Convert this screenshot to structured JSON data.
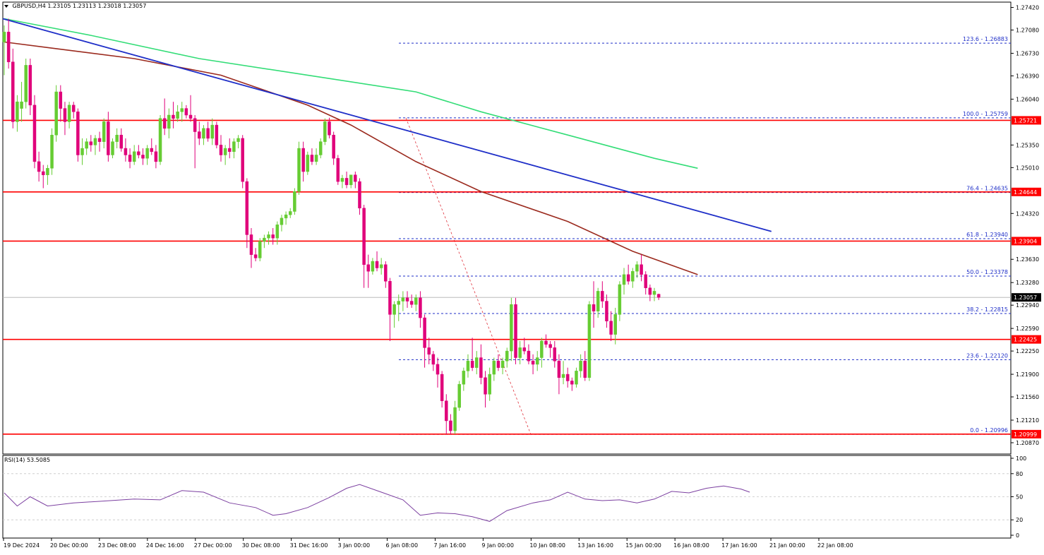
{
  "header": {
    "symbol": "GBPUSD,H4",
    "ohlc": "1.23105 1.23113 1.23018 1.23057"
  },
  "rsi": {
    "label": "RSI(14) 53.5085",
    "levels": [
      "100",
      "80",
      "50",
      "20",
      "0"
    ],
    "current": 53.5
  },
  "colors": {
    "bull": "#66cc33",
    "bear": "#e0007a",
    "sma_fast": "#9b2a1e",
    "sma_slow": "#33dd77",
    "trendline": "#1f2fc8",
    "support": "#ff0000",
    "fib": "#1f2fc8",
    "rsi": "#7b3fa0"
  },
  "chart_data": {
    "type": "candlestick",
    "symbol": "GBPUSD",
    "timeframe": "H4",
    "ylim": [
      1.207,
      1.275
    ],
    "y_ticks": [
      "1.27420",
      "1.27080",
      "1.26730",
      "1.26390",
      "1.26040",
      "1.25350",
      "1.25010",
      "1.24320",
      "1.23630",
      "1.23280",
      "1.22940",
      "1.22590",
      "1.22250",
      "1.21900",
      "1.21560",
      "1.21210",
      "1.20870"
    ],
    "x_ticks": [
      "19 Dec 2024",
      "20 Dec 00:00",
      "23 Dec 08:00",
      "24 Dec 16:00",
      "27 Dec 00:00",
      "30 Dec 08:00",
      "31 Dec 16:00",
      "3 Jan 00:00",
      "6 Jan 08:00",
      "7 Jan 16:00",
      "9 Jan 00:00",
      "10 Jan 08:00",
      "13 Jan 16:00",
      "15 Jan 00:00",
      "16 Jan 08:00",
      "17 Jan 16:00",
      "21 Jan 00:00",
      "22 Jan 08:00"
    ],
    "current_price": "1.23057",
    "support_resistance": [
      {
        "price": 1.25721,
        "label": "1.25721"
      },
      {
        "price": 1.24644,
        "label": "1.24644"
      },
      {
        "price": 1.23904,
        "label": "1.23904"
      },
      {
        "price": 1.22425,
        "label": "1.22425"
      },
      {
        "price": 1.20999,
        "label": "1.20999"
      }
    ],
    "fibonacci": [
      {
        "price": 1.26883,
        "label": "123.6 - 1.26883"
      },
      {
        "price": 1.25759,
        "label": "100.0 - 1.25759"
      },
      {
        "price": 1.24635,
        "label": "76.4 - 1.24635"
      },
      {
        "price": 1.2394,
        "label": "61.8 - 1.23940"
      },
      {
        "price": 1.23378,
        "label": "50.0 - 1.23378"
      },
      {
        "price": 1.22815,
        "label": "38.2 - 1.22815"
      },
      {
        "price": 1.2212,
        "label": "23.6 - 1.22120"
      },
      {
        "price": 1.20996,
        "label": "0.0 - 1.20996"
      }
    ],
    "candles": [
      {
        "o": 1.269,
        "h": 1.2715,
        "l": 1.264,
        "c": 1.2705
      },
      {
        "o": 1.2705,
        "h": 1.2725,
        "l": 1.265,
        "c": 1.266
      },
      {
        "o": 1.266,
        "h": 1.268,
        "l": 1.256,
        "c": 1.257
      },
      {
        "o": 1.257,
        "h": 1.261,
        "l": 1.2555,
        "c": 1.26
      },
      {
        "o": 1.259,
        "h": 1.263,
        "l": 1.257,
        "c": 1.26
      },
      {
        "o": 1.26,
        "h": 1.2665,
        "l": 1.259,
        "c": 1.2655
      },
      {
        "o": 1.2655,
        "h": 1.2665,
        "l": 1.258,
        "c": 1.2595
      },
      {
        "o": 1.2595,
        "h": 1.261,
        "l": 1.25,
        "c": 1.251
      },
      {
        "o": 1.251,
        "h": 1.2525,
        "l": 1.248,
        "c": 1.2495
      },
      {
        "o": 1.2495,
        "h": 1.2505,
        "l": 1.247,
        "c": 1.249
      },
      {
        "o": 1.249,
        "h": 1.2505,
        "l": 1.2475,
        "c": 1.25
      },
      {
        "o": 1.25,
        "h": 1.256,
        "l": 1.249,
        "c": 1.255
      },
      {
        "o": 1.255,
        "h": 1.2625,
        "l": 1.254,
        "c": 1.2615
      },
      {
        "o": 1.2615,
        "h": 1.2625,
        "l": 1.257,
        "c": 1.259
      },
      {
        "o": 1.259,
        "h": 1.26,
        "l": 1.255,
        "c": 1.257
      },
      {
        "o": 1.257,
        "h": 1.26,
        "l": 1.256,
        "c": 1.2595
      },
      {
        "o": 1.2595,
        "h": 1.26,
        "l": 1.2575,
        "c": 1.2585
      },
      {
        "o": 1.2585,
        "h": 1.259,
        "l": 1.251,
        "c": 1.252
      },
      {
        "o": 1.252,
        "h": 1.2545,
        "l": 1.2505,
        "c": 1.253
      },
      {
        "o": 1.253,
        "h": 1.2545,
        "l": 1.252,
        "c": 1.254
      },
      {
        "o": 1.254,
        "h": 1.255,
        "l": 1.2525,
        "c": 1.2535
      },
      {
        "o": 1.2535,
        "h": 1.255,
        "l": 1.252,
        "c": 1.2545
      },
      {
        "o": 1.2545,
        "h": 1.2555,
        "l": 1.2525,
        "c": 1.254
      },
      {
        "o": 1.254,
        "h": 1.2575,
        "l": 1.253,
        "c": 1.257
      },
      {
        "o": 1.257,
        "h": 1.2585,
        "l": 1.251,
        "c": 1.252
      },
      {
        "o": 1.252,
        "h": 1.2545,
        "l": 1.2515,
        "c": 1.254
      },
      {
        "o": 1.254,
        "h": 1.256,
        "l": 1.253,
        "c": 1.255
      },
      {
        "o": 1.255,
        "h": 1.256,
        "l": 1.2525,
        "c": 1.253
      },
      {
        "o": 1.253,
        "h": 1.2545,
        "l": 1.251,
        "c": 1.252
      },
      {
        "o": 1.252,
        "h": 1.253,
        "l": 1.25,
        "c": 1.251
      },
      {
        "o": 1.251,
        "h": 1.2535,
        "l": 1.2505,
        "c": 1.2525
      },
      {
        "o": 1.2525,
        "h": 1.2535,
        "l": 1.2515,
        "c": 1.252
      },
      {
        "o": 1.252,
        "h": 1.253,
        "l": 1.2505,
        "c": 1.2515
      },
      {
        "o": 1.2515,
        "h": 1.2535,
        "l": 1.2505,
        "c": 1.253
      },
      {
        "o": 1.253,
        "h": 1.2545,
        "l": 1.252,
        "c": 1.2525
      },
      {
        "o": 1.2525,
        "h": 1.2535,
        "l": 1.25,
        "c": 1.251
      },
      {
        "o": 1.251,
        "h": 1.258,
        "l": 1.2505,
        "c": 1.2575
      },
      {
        "o": 1.2575,
        "h": 1.2605,
        "l": 1.255,
        "c": 1.256
      },
      {
        "o": 1.256,
        "h": 1.259,
        "l": 1.2545,
        "c": 1.258
      },
      {
        "o": 1.258,
        "h": 1.26,
        "l": 1.256,
        "c": 1.2575
      },
      {
        "o": 1.2575,
        "h": 1.2595,
        "l": 1.257,
        "c": 1.2585
      },
      {
        "o": 1.2585,
        "h": 1.26,
        "l": 1.257,
        "c": 1.259
      },
      {
        "o": 1.259,
        "h": 1.2595,
        "l": 1.2575,
        "c": 1.258
      },
      {
        "o": 1.258,
        "h": 1.261,
        "l": 1.257,
        "c": 1.2575
      },
      {
        "o": 1.2575,
        "h": 1.258,
        "l": 1.25,
        "c": 1.2555
      },
      {
        "o": 1.2555,
        "h": 1.257,
        "l": 1.2535,
        "c": 1.2545
      },
      {
        "o": 1.2545,
        "h": 1.2565,
        "l": 1.2535,
        "c": 1.256
      },
      {
        "o": 1.256,
        "h": 1.257,
        "l": 1.254,
        "c": 1.2545
      },
      {
        "o": 1.2545,
        "h": 1.2575,
        "l": 1.2535,
        "c": 1.2565
      },
      {
        "o": 1.2565,
        "h": 1.257,
        "l": 1.253,
        "c": 1.2535
      },
      {
        "o": 1.2535,
        "h": 1.255,
        "l": 1.251,
        "c": 1.252
      },
      {
        "o": 1.252,
        "h": 1.2535,
        "l": 1.2505,
        "c": 1.253
      },
      {
        "o": 1.253,
        "h": 1.2545,
        "l": 1.2515,
        "c": 1.2525
      },
      {
        "o": 1.2525,
        "h": 1.2545,
        "l": 1.2515,
        "c": 1.254
      },
      {
        "o": 1.254,
        "h": 1.255,
        "l": 1.253,
        "c": 1.2545
      },
      {
        "o": 1.2545,
        "h": 1.255,
        "l": 1.247,
        "c": 1.248
      },
      {
        "o": 1.248,
        "h": 1.2485,
        "l": 1.238,
        "c": 1.24
      },
      {
        "o": 1.24,
        "h": 1.241,
        "l": 1.235,
        "c": 1.237
      },
      {
        "o": 1.237,
        "h": 1.238,
        "l": 1.236,
        "c": 1.2365
      },
      {
        "o": 1.2365,
        "h": 1.2395,
        "l": 1.236,
        "c": 1.239
      },
      {
        "o": 1.239,
        "h": 1.24,
        "l": 1.238,
        "c": 1.2395
      },
      {
        "o": 1.2395,
        "h": 1.2405,
        "l": 1.2385,
        "c": 1.24
      },
      {
        "o": 1.24,
        "h": 1.241,
        "l": 1.2385,
        "c": 1.2395
      },
      {
        "o": 1.2395,
        "h": 1.242,
        "l": 1.2385,
        "c": 1.2415
      },
      {
        "o": 1.2415,
        "h": 1.243,
        "l": 1.2405,
        "c": 1.2425
      },
      {
        "o": 1.2425,
        "h": 1.2435,
        "l": 1.2415,
        "c": 1.243
      },
      {
        "o": 1.243,
        "h": 1.244,
        "l": 1.2425,
        "c": 1.2435
      },
      {
        "o": 1.2435,
        "h": 1.247,
        "l": 1.243,
        "c": 1.2465
      },
      {
        "o": 1.2465,
        "h": 1.254,
        "l": 1.246,
        "c": 1.253
      },
      {
        "o": 1.253,
        "h": 1.254,
        "l": 1.248,
        "c": 1.2495
      },
      {
        "o": 1.2495,
        "h": 1.2525,
        "l": 1.249,
        "c": 1.252
      },
      {
        "o": 1.252,
        "h": 1.253,
        "l": 1.2505,
        "c": 1.251
      },
      {
        "o": 1.251,
        "h": 1.253,
        "l": 1.2505,
        "c": 1.252
      },
      {
        "o": 1.252,
        "h": 1.2545,
        "l": 1.2515,
        "c": 1.254
      },
      {
        "o": 1.254,
        "h": 1.2575,
        "l": 1.2535,
        "c": 1.257
      },
      {
        "o": 1.257,
        "h": 1.2576,
        "l": 1.2545,
        "c": 1.255
      },
      {
        "o": 1.255,
        "h": 1.2555,
        "l": 1.2505,
        "c": 1.2515
      },
      {
        "o": 1.2515,
        "h": 1.252,
        "l": 1.2475,
        "c": 1.248
      },
      {
        "o": 1.248,
        "h": 1.249,
        "l": 1.247,
        "c": 1.2485
      },
      {
        "o": 1.2485,
        "h": 1.2495,
        "l": 1.247,
        "c": 1.2475
      },
      {
        "o": 1.2475,
        "h": 1.249,
        "l": 1.247,
        "c": 1.249
      },
      {
        "o": 1.249,
        "h": 1.2495,
        "l": 1.247,
        "c": 1.248
      },
      {
        "o": 1.248,
        "h": 1.2485,
        "l": 1.243,
        "c": 1.244
      },
      {
        "o": 1.244,
        "h": 1.2445,
        "l": 1.232,
        "c": 1.2355
      },
      {
        "o": 1.2355,
        "h": 1.237,
        "l": 1.232,
        "c": 1.2345
      },
      {
        "o": 1.2345,
        "h": 1.2365,
        "l": 1.234,
        "c": 1.236
      },
      {
        "o": 1.236,
        "h": 1.2375,
        "l": 1.2345,
        "c": 1.235
      },
      {
        "o": 1.235,
        "h": 1.2365,
        "l": 1.234,
        "c": 1.2355
      },
      {
        "o": 1.2355,
        "h": 1.236,
        "l": 1.232,
        "c": 1.233
      },
      {
        "o": 1.233,
        "h": 1.2335,
        "l": 1.224,
        "c": 1.228
      },
      {
        "o": 1.228,
        "h": 1.23,
        "l": 1.226,
        "c": 1.2295
      },
      {
        "o": 1.2295,
        "h": 1.231,
        "l": 1.227,
        "c": 1.23
      },
      {
        "o": 1.23,
        "h": 1.2315,
        "l": 1.2285,
        "c": 1.2305
      },
      {
        "o": 1.2305,
        "h": 1.2315,
        "l": 1.229,
        "c": 1.23
      },
      {
        "o": 1.23,
        "h": 1.231,
        "l": 1.229,
        "c": 1.2295
      },
      {
        "o": 1.2295,
        "h": 1.231,
        "l": 1.2285,
        "c": 1.2305
      },
      {
        "o": 1.2305,
        "h": 1.2315,
        "l": 1.226,
        "c": 1.2275
      },
      {
        "o": 1.2275,
        "h": 1.228,
        "l": 1.22,
        "c": 1.223
      },
      {
        "o": 1.223,
        "h": 1.2245,
        "l": 1.2205,
        "c": 1.222
      },
      {
        "o": 1.222,
        "h": 1.2225,
        "l": 1.2195,
        "c": 1.2205
      },
      {
        "o": 1.2205,
        "h": 1.2215,
        "l": 1.217,
        "c": 1.219
      },
      {
        "o": 1.219,
        "h": 1.2195,
        "l": 1.214,
        "c": 1.215
      },
      {
        "o": 1.215,
        "h": 1.216,
        "l": 1.21,
        "c": 1.212
      },
      {
        "o": 1.212,
        "h": 1.213,
        "l": 1.21,
        "c": 1.2105
      },
      {
        "o": 1.2105,
        "h": 1.215,
        "l": 1.21,
        "c": 1.214
      },
      {
        "o": 1.214,
        "h": 1.218,
        "l": 1.2135,
        "c": 1.2175
      },
      {
        "o": 1.2175,
        "h": 1.22,
        "l": 1.2165,
        "c": 1.2195
      },
      {
        "o": 1.2195,
        "h": 1.222,
        "l": 1.2185,
        "c": 1.221
      },
      {
        "o": 1.221,
        "h": 1.2245,
        "l": 1.2195,
        "c": 1.22
      },
      {
        "o": 1.22,
        "h": 1.2225,
        "l": 1.219,
        "c": 1.2215
      },
      {
        "o": 1.2215,
        "h": 1.2235,
        "l": 1.2175,
        "c": 1.2185
      },
      {
        "o": 1.2185,
        "h": 1.2195,
        "l": 1.214,
        "c": 1.216
      },
      {
        "o": 1.216,
        "h": 1.22,
        "l": 1.215,
        "c": 1.219
      },
      {
        "o": 1.219,
        "h": 1.2215,
        "l": 1.218,
        "c": 1.221
      },
      {
        "o": 1.221,
        "h": 1.222,
        "l": 1.2195,
        "c": 1.22
      },
      {
        "o": 1.22,
        "h": 1.2215,
        "l": 1.219,
        "c": 1.221
      },
      {
        "o": 1.221,
        "h": 1.223,
        "l": 1.22,
        "c": 1.2225
      },
      {
        "o": 1.2225,
        "h": 1.2305,
        "l": 1.221,
        "c": 1.2295
      },
      {
        "o": 1.2295,
        "h": 1.2305,
        "l": 1.2205,
        "c": 1.2215
      },
      {
        "o": 1.2215,
        "h": 1.224,
        "l": 1.2205,
        "c": 1.223
      },
      {
        "o": 1.223,
        "h": 1.2245,
        "l": 1.222,
        "c": 1.2225
      },
      {
        "o": 1.2225,
        "h": 1.2235,
        "l": 1.2205,
        "c": 1.221
      },
      {
        "o": 1.221,
        "h": 1.222,
        "l": 1.219,
        "c": 1.2205
      },
      {
        "o": 1.2205,
        "h": 1.2225,
        "l": 1.2195,
        "c": 1.2215
      },
      {
        "o": 1.2215,
        "h": 1.2245,
        "l": 1.22,
        "c": 1.224
      },
      {
        "o": 1.224,
        "h": 1.225,
        "l": 1.223,
        "c": 1.2235
      },
      {
        "o": 1.2235,
        "h": 1.224,
        "l": 1.2215,
        "c": 1.223
      },
      {
        "o": 1.223,
        "h": 1.224,
        "l": 1.22,
        "c": 1.221
      },
      {
        "o": 1.221,
        "h": 1.222,
        "l": 1.216,
        "c": 1.2185
      },
      {
        "o": 1.2185,
        "h": 1.221,
        "l": 1.2175,
        "c": 1.219
      },
      {
        "o": 1.219,
        "h": 1.22,
        "l": 1.217,
        "c": 1.218
      },
      {
        "o": 1.218,
        "h": 1.2185,
        "l": 1.2165,
        "c": 1.2175
      },
      {
        "o": 1.2175,
        "h": 1.22,
        "l": 1.217,
        "c": 1.2195
      },
      {
        "o": 1.2195,
        "h": 1.222,
        "l": 1.2185,
        "c": 1.221
      },
      {
        "o": 1.221,
        "h": 1.2225,
        "l": 1.218,
        "c": 1.2185
      },
      {
        "o": 1.2185,
        "h": 1.23,
        "l": 1.218,
        "c": 1.2295
      },
      {
        "o": 1.2295,
        "h": 1.233,
        "l": 1.226,
        "c": 1.2285
      },
      {
        "o": 1.2285,
        "h": 1.232,
        "l": 1.2275,
        "c": 1.2315
      },
      {
        "o": 1.2315,
        "h": 1.233,
        "l": 1.229,
        "c": 1.23
      },
      {
        "o": 1.23,
        "h": 1.231,
        "l": 1.226,
        "c": 1.227
      },
      {
        "o": 1.227,
        "h": 1.2285,
        "l": 1.224,
        "c": 1.225
      },
      {
        "o": 1.225,
        "h": 1.229,
        "l": 1.2235,
        "c": 1.228
      },
      {
        "o": 1.228,
        "h": 1.233,
        "l": 1.227,
        "c": 1.2325
      },
      {
        "o": 1.2325,
        "h": 1.235,
        "l": 1.231,
        "c": 1.234
      },
      {
        "o": 1.234,
        "h": 1.2355,
        "l": 1.2325,
        "c": 1.233
      },
      {
        "o": 1.233,
        "h": 1.235,
        "l": 1.232,
        "c": 1.2345
      },
      {
        "o": 1.2345,
        "h": 1.236,
        "l": 1.2335,
        "c": 1.2355
      },
      {
        "o": 1.2355,
        "h": 1.237,
        "l": 1.233,
        "c": 1.234
      },
      {
        "o": 1.234,
        "h": 1.2345,
        "l": 1.231,
        "c": 1.232
      },
      {
        "o": 1.232,
        "h": 1.2325,
        "l": 1.23,
        "c": 1.231
      },
      {
        "o": 1.231,
        "h": 1.232,
        "l": 1.23,
        "c": 1.2315
      },
      {
        "o": 1.23105,
        "h": 1.23113,
        "l": 1.23018,
        "c": 1.23057
      }
    ],
    "sma_fast_anchors": [
      [
        0,
        1.269
      ],
      [
        12,
        1.268
      ],
      [
        30,
        1.2665
      ],
      [
        50,
        1.264
      ],
      [
        70,
        1.2595
      ],
      [
        80,
        1.2565
      ],
      [
        95,
        1.251
      ],
      [
        110,
        1.2465
      ],
      [
        130,
        1.242
      ],
      [
        145,
        1.2375
      ],
      [
        160,
        1.234
      ]
    ],
    "sma_slow_anchors": [
      [
        0,
        1.2725
      ],
      [
        20,
        1.27
      ],
      [
        45,
        1.2665
      ],
      [
        75,
        1.2635
      ],
      [
        95,
        1.2615
      ],
      [
        110,
        1.2585
      ],
      [
        130,
        1.255
      ],
      [
        150,
        1.2515
      ],
      [
        160,
        1.25
      ]
    ],
    "trendline": [
      [
        1.2725,
        0
      ],
      [
        1.2405,
        1
      ]
    ],
    "rsi_anchors": [
      [
        0,
        55
      ],
      [
        3,
        38
      ],
      [
        6,
        50
      ],
      [
        10,
        38
      ],
      [
        16,
        42
      ],
      [
        22,
        44
      ],
      [
        30,
        47
      ],
      [
        36,
        46
      ],
      [
        41,
        58
      ],
      [
        46,
        56
      ],
      [
        52,
        42
      ],
      [
        58,
        36
      ],
      [
        62,
        26
      ],
      [
        65,
        28
      ],
      [
        70,
        36
      ],
      [
        75,
        49
      ],
      [
        79,
        61
      ],
      [
        82,
        66
      ],
      [
        87,
        56
      ],
      [
        92,
        46
      ],
      [
        96,
        26
      ],
      [
        100,
        29
      ],
      [
        104,
        28
      ],
      [
        108,
        24
      ],
      [
        112,
        18
      ],
      [
        116,
        32
      ],
      [
        122,
        42
      ],
      [
        126,
        46
      ],
      [
        130,
        56
      ],
      [
        134,
        47
      ],
      [
        138,
        45
      ],
      [
        142,
        46
      ],
      [
        146,
        42
      ],
      [
        150,
        47
      ],
      [
        154,
        57
      ],
      [
        158,
        55
      ],
      [
        162,
        61
      ],
      [
        166,
        64
      ],
      [
        170,
        60
      ],
      [
        172,
        56
      ]
    ]
  }
}
